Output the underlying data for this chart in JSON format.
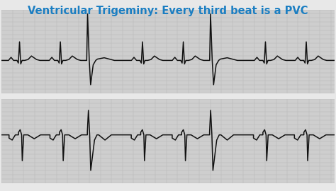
{
  "title": "Ventricular Trigeminy: Every third beat is a PVC",
  "title_color": "#1b7ec2",
  "title_fontsize": 10.5,
  "bg_color": "#cecece",
  "grid_minor_color": "#b8b8b8",
  "grid_major_color": "#aaaaaa",
  "ecg_color": "#111111",
  "line_width": 1.1,
  "fig_bg": "#e8e8e8",
  "border_color": "#cccccc"
}
